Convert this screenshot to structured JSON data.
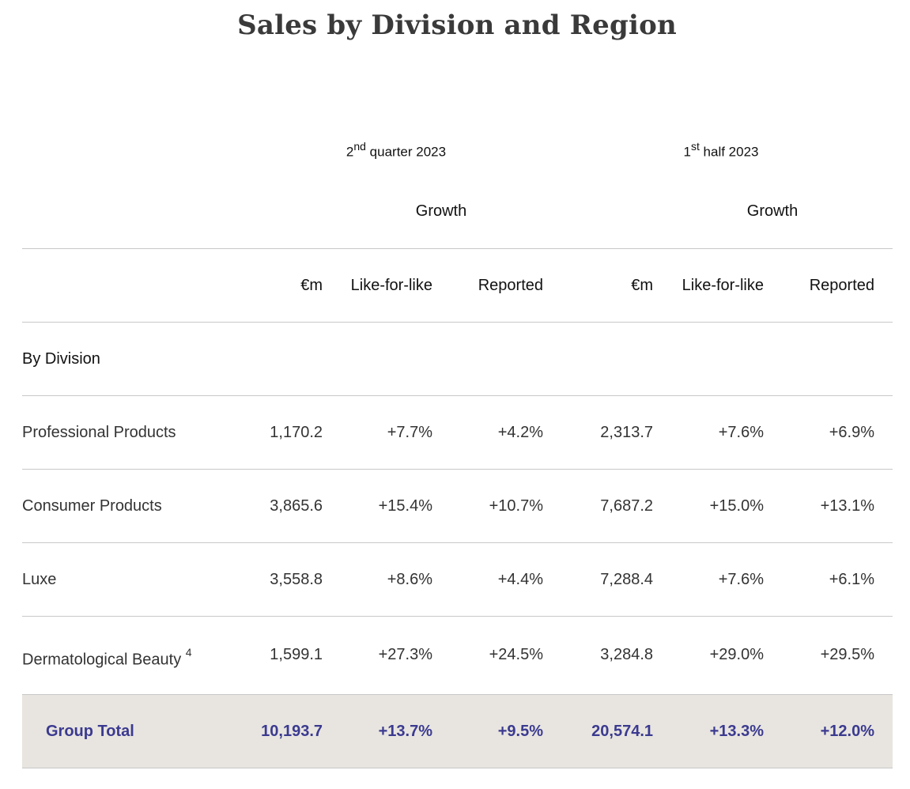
{
  "title": "Sales by Division and Region",
  "periods": {
    "q2": {
      "sup": "nd",
      "base": "2",
      "rest": " quarter 2023"
    },
    "h1": {
      "sup": "st",
      "base": "1",
      "rest": " half 2023"
    }
  },
  "growth_label": "Growth",
  "columns": {
    "eur_m": "€m",
    "lfl": "Like-for-like",
    "reported": "Reported"
  },
  "section": "By Division",
  "rows": [
    {
      "label": "Professional Products",
      "note": "",
      "q2_eur": "1,170.2",
      "q2_lfl": "+7.7%",
      "q2_rep": "+4.2%",
      "h1_eur": "2,313.7",
      "h1_lfl": "+7.6%",
      "h1_rep": "+6.9%"
    },
    {
      "label": "Consumer Products",
      "note": "",
      "q2_eur": "3,865.6",
      "q2_lfl": "+15.4%",
      "q2_rep": "+10.7%",
      "h1_eur": "7,687.2",
      "h1_lfl": "+15.0%",
      "h1_rep": "+13.1%"
    },
    {
      "label": "Luxe",
      "note": "",
      "q2_eur": "3,558.8",
      "q2_lfl": "+8.6%",
      "q2_rep": "+4.4%",
      "h1_eur": "7,288.4",
      "h1_lfl": "+7.6%",
      "h1_rep": "+6.1%"
    },
    {
      "label": "Dermatological Beauty ",
      "note": "4",
      "q2_eur": "1,599.1",
      "q2_lfl": "+27.3%",
      "q2_rep": "+24.5%",
      "h1_eur": "3,284.8",
      "h1_lfl": "+29.0%",
      "h1_rep": "+29.5%"
    }
  ],
  "total": {
    "label": "Group Total",
    "q2_eur": "10,193.7",
    "q2_lfl": "+13.7%",
    "q2_rep": "+9.5%",
    "h1_eur": "20,574.1",
    "h1_lfl": "+13.3%",
    "h1_rep": "+12.0%"
  },
  "colors": {
    "total_text": "#3b3a90",
    "total_bg": "#e8e5e0",
    "title": "#3a3a3a"
  }
}
